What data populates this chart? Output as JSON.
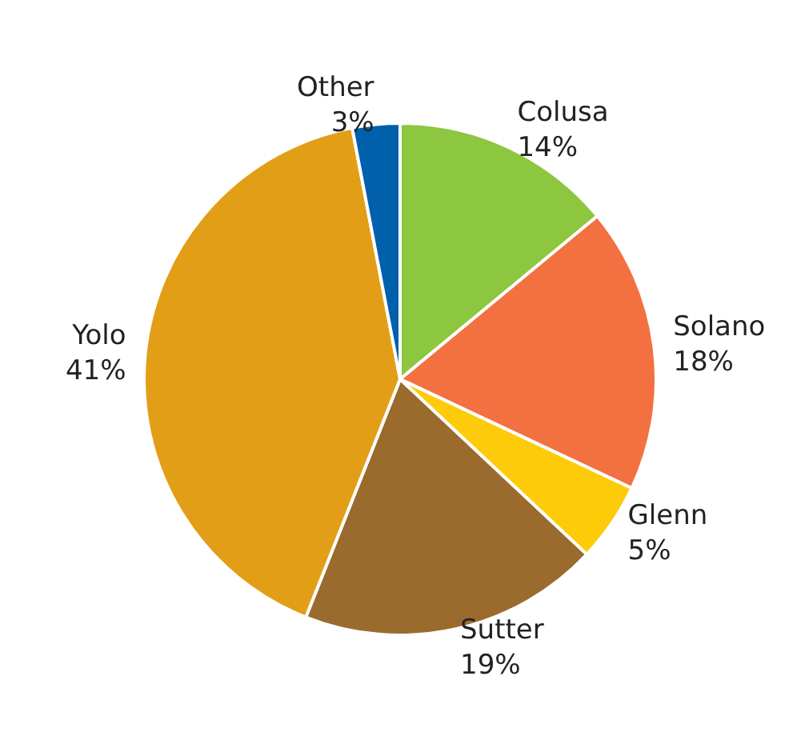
{
  "chart_data": {
    "type": "pie",
    "categories": [
      "Colusa",
      "Solano",
      "Glenn",
      "Sutter",
      "Yolo",
      "Other"
    ],
    "values": [
      14,
      18,
      5,
      19,
      41,
      3
    ],
    "colors": [
      "#8dc63f",
      "#f37140",
      "#fdcb0a",
      "#9a6b2d",
      "#e39e17",
      "#0060ac"
    ],
    "value_labels": [
      "14%",
      "18%",
      "5%",
      "19%",
      "41%",
      "3%"
    ]
  }
}
